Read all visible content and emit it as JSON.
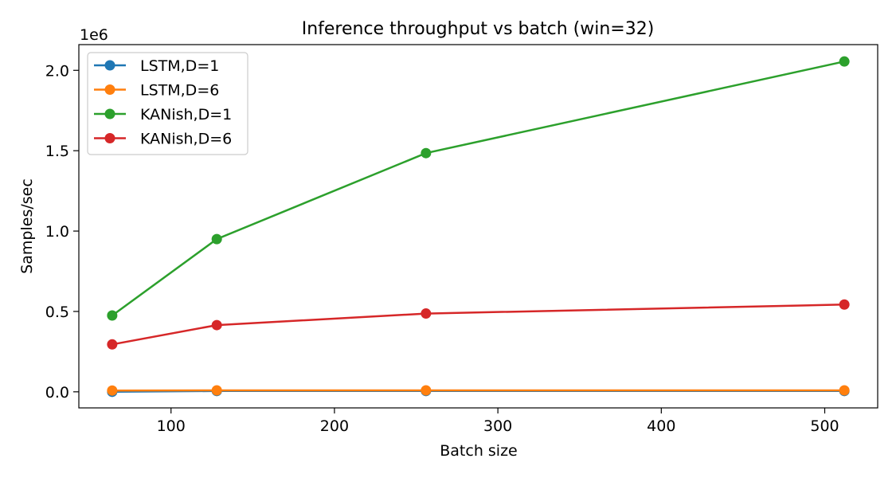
{
  "chart_data": {
    "type": "line",
    "title": "Inference throughput vs batch (win=32)",
    "xlabel": "Batch size",
    "ylabel": "Samples/sec",
    "y_offset_label": "1e6",
    "x": [
      64,
      128,
      256,
      512
    ],
    "xlim": [
      43.6,
      532.4
    ],
    "ylim": [
      -0.1,
      2.16
    ],
    "x_ticks": [
      100,
      200,
      300,
      400,
      500
    ],
    "y_ticks": [
      0.0,
      0.5,
      1.0,
      1.5,
      2.0
    ],
    "x_tick_labels": [
      "100",
      "200",
      "300",
      "400",
      "500"
    ],
    "y_tick_labels": [
      "0.0",
      "0.5",
      "1.0",
      "1.5",
      "2.0"
    ],
    "grid": false,
    "legend_position": "top-left",
    "series": [
      {
        "name": "LSTM,D=1",
        "color": "#1f77b4",
        "values": [
          0.0,
          0.005,
          0.005,
          0.005
        ]
      },
      {
        "name": "LSTM,D=6",
        "color": "#ff7f0e",
        "values": [
          0.008,
          0.009,
          0.009,
          0.009
        ]
      },
      {
        "name": "KANish,D=1",
        "color": "#2ca02c",
        "values": [
          0.475,
          0.95,
          1.485,
          2.055
        ]
      },
      {
        "name": "KANish,D=6",
        "color": "#d62728",
        "values": [
          0.295,
          0.415,
          0.487,
          0.543
        ]
      }
    ]
  }
}
